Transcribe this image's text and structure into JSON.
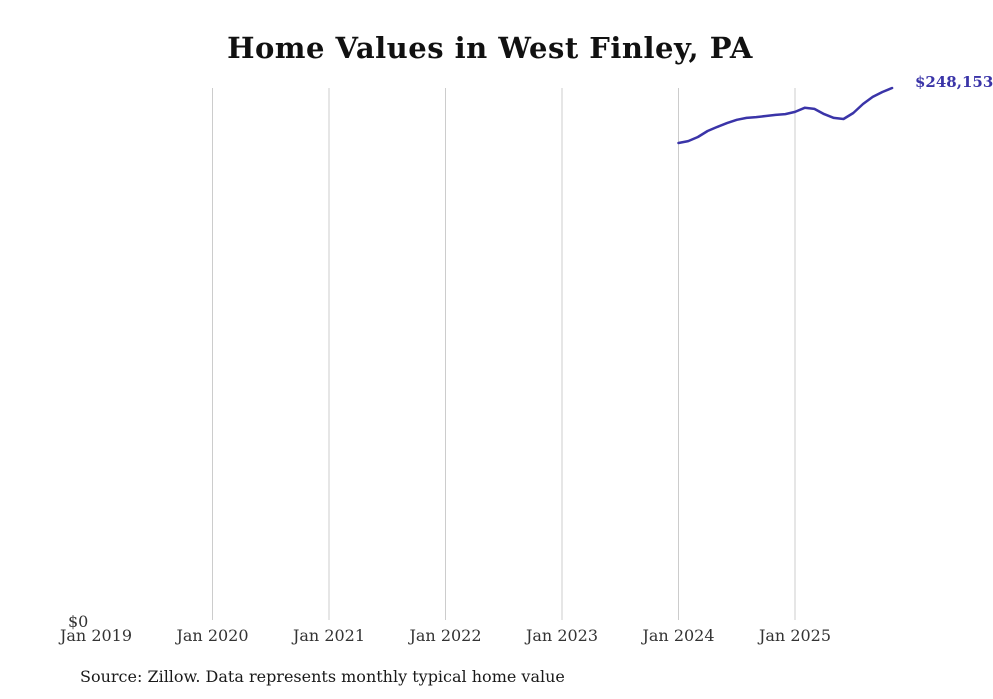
{
  "chart": {
    "title": "Home Values in West Finley, PA",
    "source": "Source: Zillow. Data represents monthly typical home value",
    "y_zero_label": "$0",
    "latest_value_label": "$248,153"
  },
  "chart_data": {
    "type": "line",
    "title": "Home Values in West Finley, PA",
    "xlabel": "",
    "ylabel": "",
    "legend": "none",
    "grid": "vertical-only",
    "line_color": "#3a34a8",
    "grid_color": "#cccccc",
    "y_axis": {
      "min_label": "$0",
      "min_value": 0,
      "max_value": 248153
    },
    "x_ticks": [
      {
        "label": "Jan 2019",
        "gridline": false
      },
      {
        "label": "Jan 2020",
        "gridline": true
      },
      {
        "label": "Jan 2021",
        "gridline": true
      },
      {
        "label": "Jan 2022",
        "gridline": true
      },
      {
        "label": "Jan 2023",
        "gridline": true
      },
      {
        "label": "Jan 2024",
        "gridline": true
      },
      {
        "label": "Jan 2025",
        "gridline": true
      }
    ],
    "latest_value_label": "$248,153",
    "series": [
      {
        "date": "2024-01",
        "value": 222500
      },
      {
        "date": "2024-02",
        "value": 223400
      },
      {
        "date": "2024-03",
        "value": 225300
      },
      {
        "date": "2024-04",
        "value": 228100
      },
      {
        "date": "2024-05",
        "value": 230000
      },
      {
        "date": "2024-06",
        "value": 231800
      },
      {
        "date": "2024-07",
        "value": 233300
      },
      {
        "date": "2024-08",
        "value": 234200
      },
      {
        "date": "2024-09",
        "value": 234600
      },
      {
        "date": "2024-10",
        "value": 235100
      },
      {
        "date": "2024-11",
        "value": 235600
      },
      {
        "date": "2024-12",
        "value": 236000
      },
      {
        "date": "2025-01",
        "value": 237000
      },
      {
        "date": "2025-02",
        "value": 238900
      },
      {
        "date": "2025-03",
        "value": 238400
      },
      {
        "date": "2025-04",
        "value": 236000
      },
      {
        "date": "2025-05",
        "value": 234200
      },
      {
        "date": "2025-06",
        "value": 233700
      },
      {
        "date": "2025-07",
        "value": 236500
      },
      {
        "date": "2025-08",
        "value": 240700
      },
      {
        "date": "2025-09",
        "value": 244000
      },
      {
        "date": "2025-10",
        "value": 246300
      },
      {
        "date": "2025-11",
        "value": 248153
      }
    ]
  }
}
